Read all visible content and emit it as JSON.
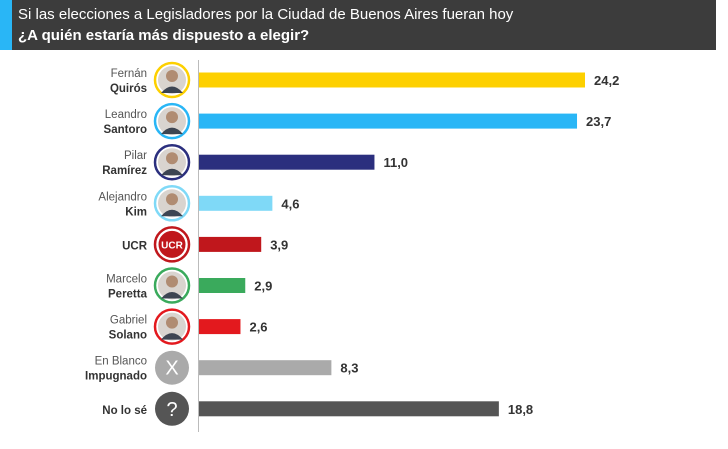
{
  "header": {
    "title": "Si las elecciones a Legisladores por la Ciudad de Buenos Aires fueran hoy",
    "subtitle": "¿A quién estaría más dispuesto a elegir?",
    "accent_color": "#29b6f6",
    "background_color": "#3c3c3c"
  },
  "chart_data": {
    "type": "bar",
    "orientation": "horizontal",
    "title": "Si las elecciones a Legisladores por la Ciudad de Buenos Aires fueran hoy",
    "subtitle": "¿A quién estaría más dispuesto a elegir?",
    "categories": [
      {
        "first": "Fernán",
        "last": "Quirós"
      },
      {
        "first": "Leandro",
        "last": "Santoro"
      },
      {
        "first": "Pilar",
        "last": "Ramírez"
      },
      {
        "first": "Alejandro",
        "last": "Kim"
      },
      {
        "first": "",
        "last": "UCR"
      },
      {
        "first": "Marcelo",
        "last": "Peretta"
      },
      {
        "first": "Gabriel",
        "last": "Solano"
      },
      {
        "first": "En Blanco",
        "last": "Impugnado"
      },
      {
        "first": "",
        "last": "No lo sé"
      }
    ],
    "values": [
      24.2,
      23.7,
      11.0,
      4.6,
      3.9,
      2.9,
      2.6,
      8.3,
      18.8
    ],
    "value_labels": [
      "24,2",
      "23,7",
      "11,0",
      "4,6",
      "3,9",
      "2,9",
      "2,6",
      "8,3",
      "18,8"
    ],
    "colors": [
      "#fdd000",
      "#29b6f6",
      "#2b2f7e",
      "#7fd9f7",
      "#c0171c",
      "#3aaa5c",
      "#e3191e",
      "#aaaaaa",
      "#555555"
    ],
    "avatars": [
      {
        "icon": "person-photo-icon",
        "ring": "#fdd000"
      },
      {
        "icon": "person-photo-icon",
        "ring": "#29b6f6"
      },
      {
        "icon": "person-photo-icon",
        "ring": "#2b2f7e"
      },
      {
        "icon": "person-photo-icon",
        "ring": "#7fd9f7"
      },
      {
        "icon": "ucr-logo-icon",
        "ring": "#c0171c",
        "logo_text": "UCR"
      },
      {
        "icon": "person-photo-icon",
        "ring": "#3aaa5c"
      },
      {
        "icon": "person-photo-icon",
        "ring": "#e3191e"
      },
      {
        "icon": "x-mark-icon",
        "glyph": "X"
      },
      {
        "icon": "question-mark-icon",
        "glyph": "?"
      }
    ],
    "xlim": [
      0,
      26
    ],
    "grid": false,
    "legend": "none"
  }
}
